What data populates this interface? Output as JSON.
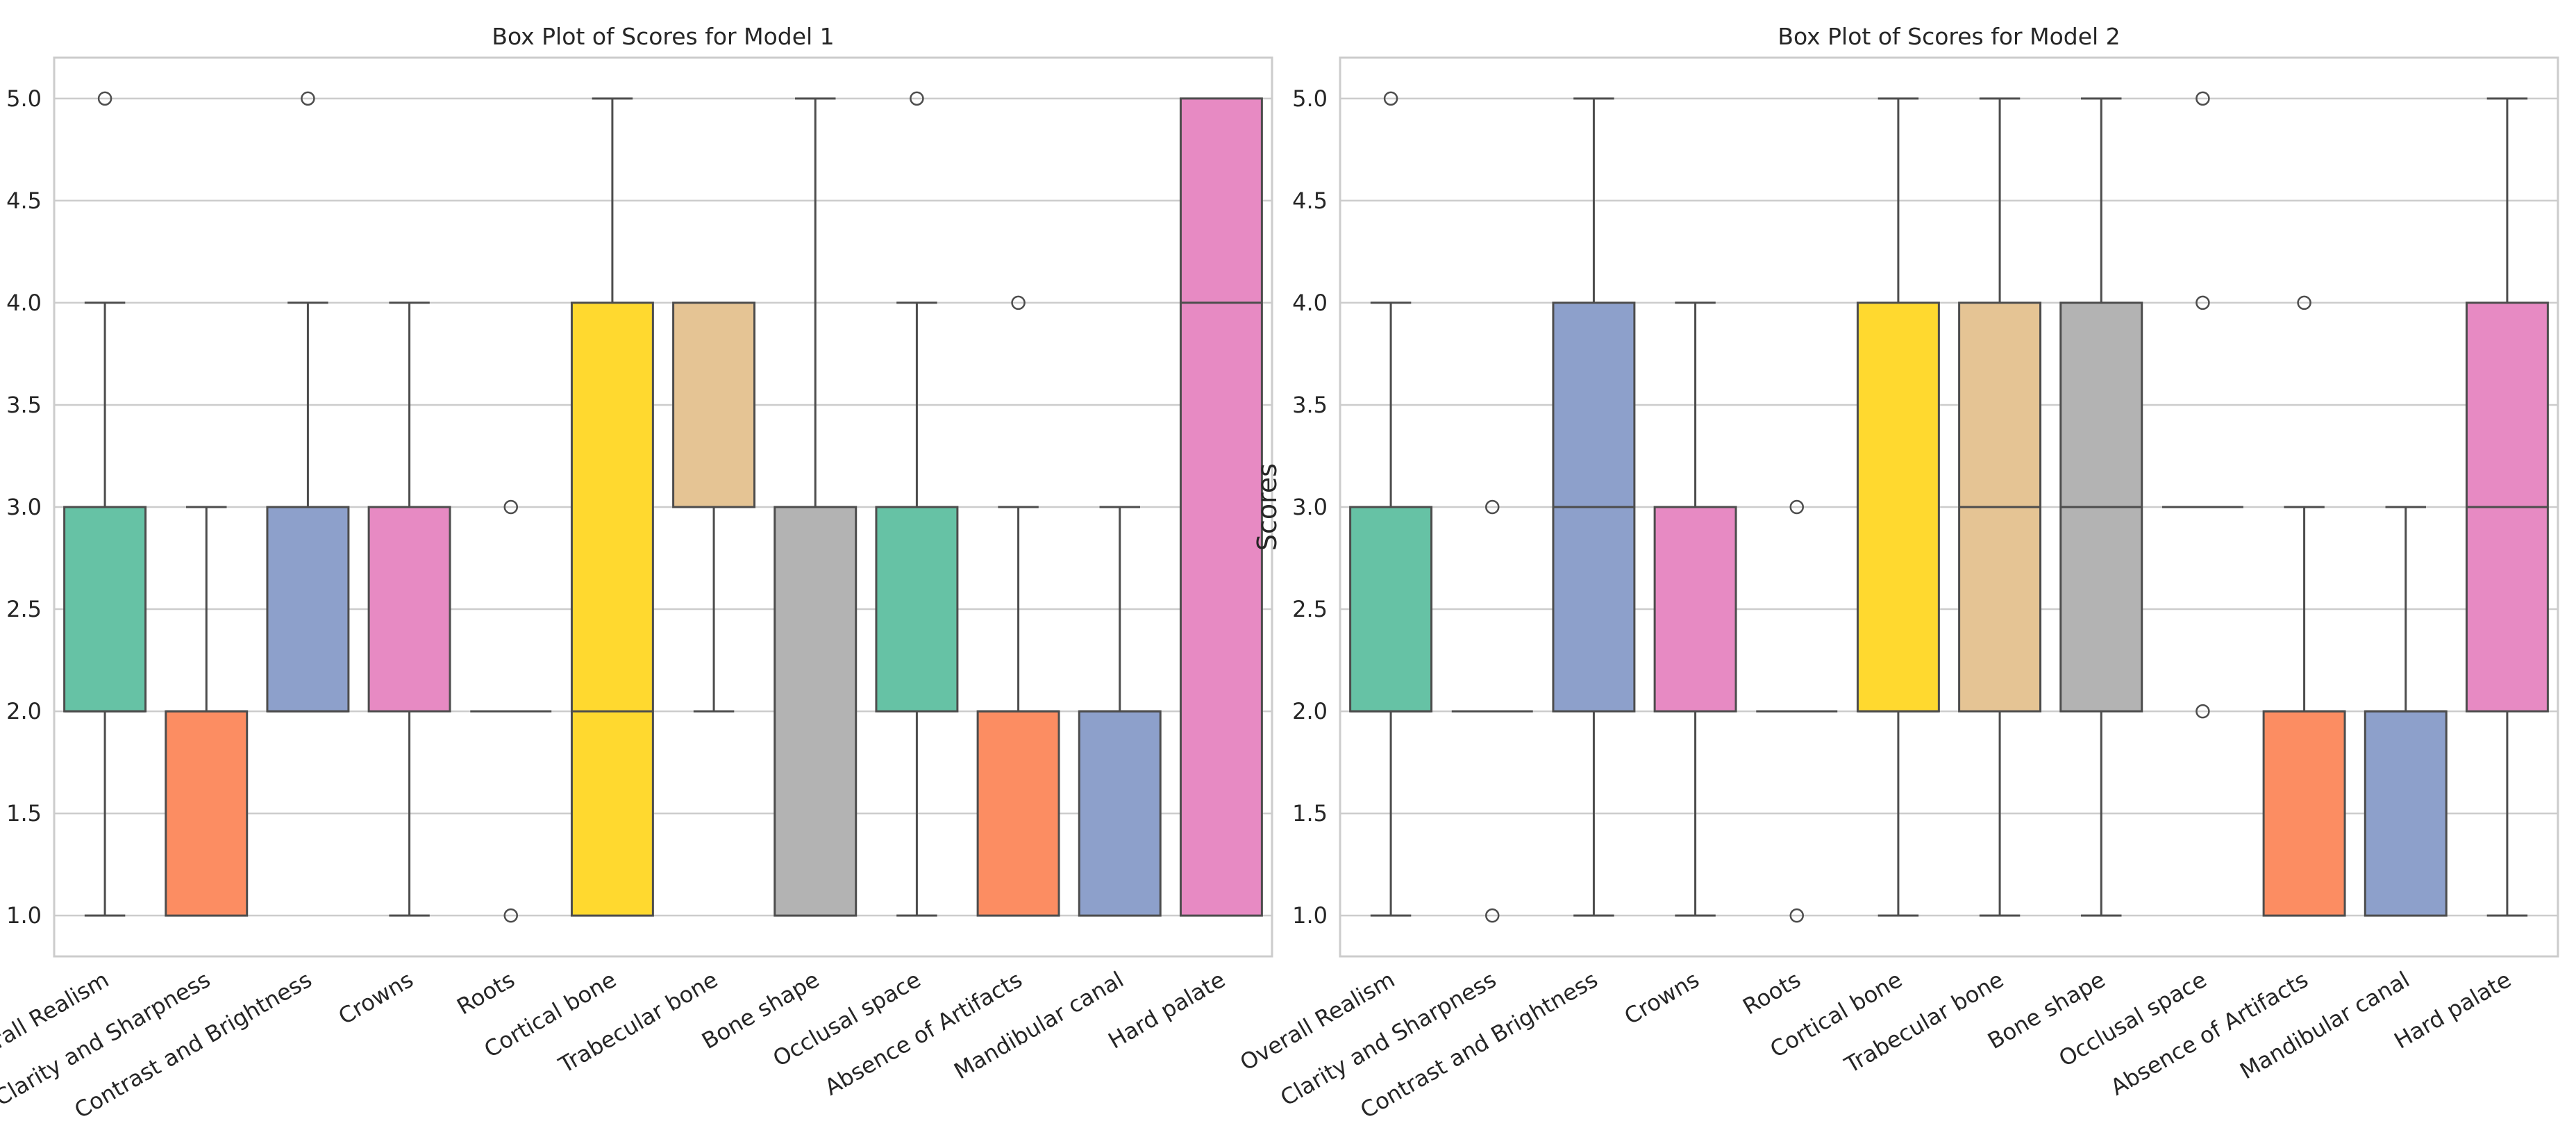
{
  "chart_data": [
    {
      "type": "box",
      "title": "Box Plot of Scores for Model 1",
      "xlabel": "",
      "ylabel": "Scores",
      "ylim": [
        0.8,
        5.2
      ],
      "yticks": [
        "1.0",
        "1.5",
        "2.0",
        "2.5",
        "3.0",
        "3.5",
        "4.0",
        "4.5",
        "5.0"
      ],
      "grid": "horizontal",
      "categories": [
        "Overall Realism",
        "Clarity and Sharpness",
        "Contrast and Brightness",
        "Crowns",
        "Roots",
        "Cortical bone",
        "Trabecular bone",
        "Bone shape",
        "Occlusal space",
        "Absence of Artifacts",
        "Mandibular canal",
        "Hard palate"
      ],
      "boxes": [
        {
          "q1": 2,
          "median": 2,
          "q3": 3,
          "whisker_low": 1,
          "whisker_high": 4,
          "outliers": [
            5
          ]
        },
        {
          "q1": 1,
          "median": 2,
          "q3": 2,
          "whisker_low": 1,
          "whisker_high": 3,
          "outliers": []
        },
        {
          "q1": 2,
          "median": 2,
          "q3": 3,
          "whisker_low": 2,
          "whisker_high": 4,
          "outliers": [
            5
          ]
        },
        {
          "q1": 2,
          "median": 3,
          "q3": 3,
          "whisker_low": 1,
          "whisker_high": 4,
          "outliers": []
        },
        {
          "q1": 2,
          "median": 2,
          "q3": 2,
          "whisker_low": 2,
          "whisker_high": 2,
          "outliers": [
            1,
            3
          ]
        },
        {
          "q1": 1,
          "median": 2,
          "q3": 4,
          "whisker_low": 1,
          "whisker_high": 5,
          "outliers": []
        },
        {
          "q1": 3,
          "median": 3,
          "q3": 4,
          "whisker_low": 2,
          "whisker_high": 4,
          "outliers": []
        },
        {
          "q1": 1,
          "median": 3,
          "q3": 3,
          "whisker_low": 1,
          "whisker_high": 5,
          "outliers": []
        },
        {
          "q1": 2,
          "median": 3,
          "q3": 3,
          "whisker_low": 1,
          "whisker_high": 4,
          "outliers": [
            5
          ]
        },
        {
          "q1": 1,
          "median": 2,
          "q3": 2,
          "whisker_low": 1,
          "whisker_high": 3,
          "outliers": [
            4
          ]
        },
        {
          "q1": 1,
          "median": 2,
          "q3": 2,
          "whisker_low": 1,
          "whisker_high": 3,
          "outliers": []
        },
        {
          "q1": 1,
          "median": 4,
          "q3": 5,
          "whisker_low": 1,
          "whisker_high": 5,
          "outliers": []
        }
      ]
    },
    {
      "type": "box",
      "title": "Box Plot of Scores for Model 2",
      "xlabel": "",
      "ylabel": "Scores",
      "ylim": [
        0.8,
        5.2
      ],
      "yticks": [
        "1.0",
        "1.5",
        "2.0",
        "2.5",
        "3.0",
        "3.5",
        "4.0",
        "4.5",
        "5.0"
      ],
      "grid": "horizontal",
      "categories": [
        "Overall Realism",
        "Clarity and Sharpness",
        "Contrast and Brightness",
        "Crowns",
        "Roots",
        "Cortical bone",
        "Trabecular bone",
        "Bone shape",
        "Occlusal space",
        "Absence of Artifacts",
        "Mandibular canal",
        "Hard palate"
      ],
      "boxes": [
        {
          "q1": 2,
          "median": 2,
          "q3": 3,
          "whisker_low": 1,
          "whisker_high": 4,
          "outliers": [
            5
          ]
        },
        {
          "q1": 2,
          "median": 2,
          "q3": 2,
          "whisker_low": 2,
          "whisker_high": 2,
          "outliers": [
            1,
            3
          ]
        },
        {
          "q1": 2,
          "median": 3,
          "q3": 4,
          "whisker_low": 1,
          "whisker_high": 5,
          "outliers": []
        },
        {
          "q1": 2,
          "median": 3,
          "q3": 3,
          "whisker_low": 1,
          "whisker_high": 4,
          "outliers": []
        },
        {
          "q1": 2,
          "median": 2,
          "q3": 2,
          "whisker_low": 2,
          "whisker_high": 2,
          "outliers": [
            1,
            3
          ]
        },
        {
          "q1": 2,
          "median": 2,
          "q3": 4,
          "whisker_low": 1,
          "whisker_high": 5,
          "outliers": []
        },
        {
          "q1": 2,
          "median": 3,
          "q3": 4,
          "whisker_low": 1,
          "whisker_high": 5,
          "outliers": []
        },
        {
          "q1": 2,
          "median": 3,
          "q3": 4,
          "whisker_low": 1,
          "whisker_high": 5,
          "outliers": []
        },
        {
          "q1": 3,
          "median": 3,
          "q3": 3,
          "whisker_low": 3,
          "whisker_high": 3,
          "outliers": [
            2,
            4,
            5
          ]
        },
        {
          "q1": 1,
          "median": 2,
          "q3": 2,
          "whisker_low": 1,
          "whisker_high": 3,
          "outliers": [
            4
          ]
        },
        {
          "q1": 1,
          "median": 2,
          "q3": 2,
          "whisker_low": 1,
          "whisker_high": 3,
          "outliers": []
        },
        {
          "q1": 2,
          "median": 3,
          "q3": 4,
          "whisker_low": 1,
          "whisker_high": 5,
          "outliers": []
        }
      ]
    }
  ],
  "colors": {
    "palette": [
      "#66c2a5",
      "#fc8d62",
      "#8da0cb",
      "#e78ac3",
      "#a6d854",
      "#ffd92f",
      "#e5c494",
      "#b3b3b3"
    ],
    "edge": "#4d4d4d",
    "grid": "#cccccc",
    "spine": "#cccccc",
    "text": "#262626"
  }
}
